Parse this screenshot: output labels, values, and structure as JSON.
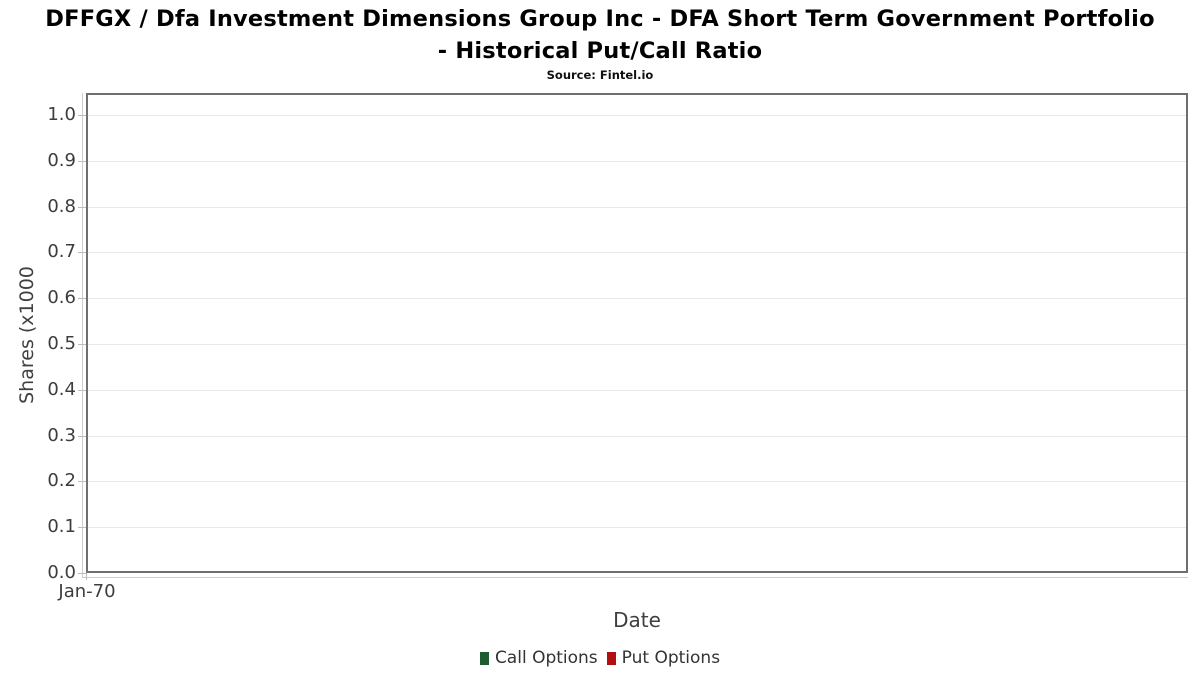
{
  "header": {
    "title": "DFFGX / Dfa Investment Dimensions Group Inc - DFA Short Term Government Portfolio - Historical Put/Call Ratio",
    "subtitle": "Source: Fintel.io"
  },
  "chart_data": {
    "type": "bar",
    "title": "DFFGX / Dfa Investment Dimensions Group Inc - DFA Short Term Government Portfolio - Historical Put/Call Ratio",
    "subtitle": "Source: Fintel.io",
    "xlabel": "Date",
    "ylabel": "Shares (x1000",
    "x_ticks": [
      "Jan-70"
    ],
    "y_ticks": [
      "0.0",
      "0.1",
      "0.2",
      "0.3",
      "0.4",
      "0.5",
      "0.6",
      "0.7",
      "0.8",
      "0.9",
      "1.0"
    ],
    "ylim": [
      0.0,
      1.0
    ],
    "grid": true,
    "legend_position": "bottom",
    "series": [
      {
        "name": "Call Options",
        "color": "#1c5c30",
        "x": [],
        "values": []
      },
      {
        "name": "Put Options",
        "color": "#b01010",
        "x": [],
        "values": []
      }
    ]
  },
  "colors": {
    "plot_border": "#6f6f6f",
    "gridline": "#e9e9e9",
    "axis_line": "#cccccc",
    "tick_mark": "#bdbdbd",
    "tick_label": "#3d3d3d",
    "axis_title": "#3f3f3f",
    "legend_text": "#333333"
  }
}
